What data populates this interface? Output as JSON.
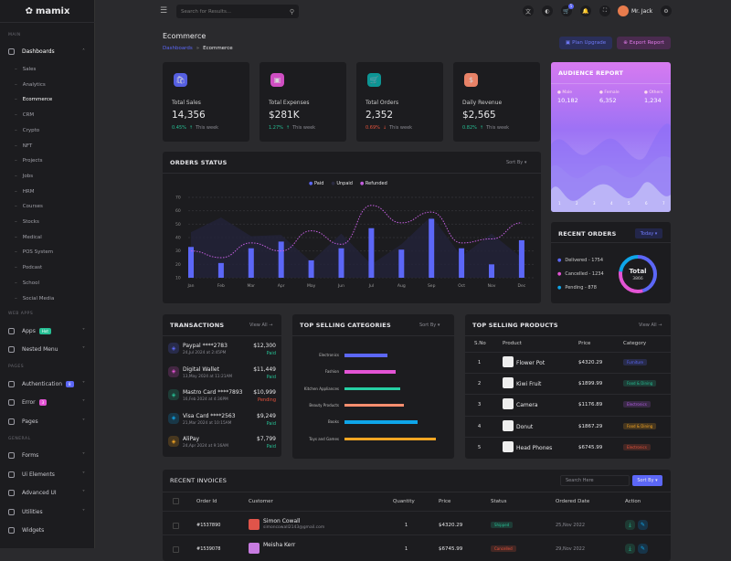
{
  "brand": "mamix",
  "sidebar": {
    "sections": [
      "MAIN",
      "WEB APPS",
      "PAGES",
      "GENERAL"
    ],
    "dashboards": "Dashboards",
    "sub_items": [
      "Sales",
      "Analytics",
      "Ecommerce",
      "CRM",
      "Crypto",
      "NFT",
      "Projects",
      "Jobs",
      "HRM",
      "Courses",
      "Stocks",
      "Medical",
      "POS System",
      "Podcast",
      "School",
      "Social Media"
    ],
    "apps": {
      "label": "Apps",
      "badge": "Hot"
    },
    "nested": "Nested Menu",
    "auth": {
      "label": "Authentication",
      "badge": "8"
    },
    "error": {
      "label": "Error",
      "badge": "3"
    },
    "pages": "Pages",
    "forms": "Forms",
    "ui": "Ui Elements",
    "advanced": "Advanced UI",
    "utilities": "Utilities",
    "widgets": "Widgets"
  },
  "topbar": {
    "search_placeholder": "Search for Results...",
    "cart_count": "5",
    "user": "Mr. Jack"
  },
  "page": {
    "title": "Ecommerce",
    "breadcrumb": [
      "Dashboards",
      "Ecommerce"
    ],
    "plan_upgrade": "Plan Upgrade",
    "export_report": "Export Report"
  },
  "stats": [
    {
      "label": "Total Sales",
      "value": "14,356",
      "change": "0.45%",
      "dir": "up",
      "period": "This week",
      "color": "#5c67f7"
    },
    {
      "label": "Total Expenses",
      "value": "$281K",
      "change": "1.27%",
      "dir": "up",
      "period": "This week",
      "color": "#e354d4"
    },
    {
      "label": "Total Orders",
      "value": "2,352",
      "change": "0.69%",
      "dir": "down",
      "period": "This week",
      "color": "#0ca3a1"
    },
    {
      "label": "Daily Revenue",
      "value": "$2,565",
      "change": "0.82%",
      "dir": "up",
      "period": "This week",
      "color": "#ff8e6f"
    }
  ],
  "audience": {
    "title": "AUDIENCE REPORT",
    "items": [
      {
        "label": "Male",
        "value": "10,182"
      },
      {
        "label": "Female",
        "value": "6,352"
      },
      {
        "label": "Others",
        "value": "1,234"
      }
    ],
    "x": [
      "1",
      "2",
      "3",
      "4",
      "5",
      "6",
      "7"
    ]
  },
  "orders_status": {
    "title": "ORDERS STATUS",
    "sort": "Sort By"
  },
  "chart_data": {
    "type": "bar",
    "categories": [
      "Jan",
      "Feb",
      "Mar",
      "Apr",
      "May",
      "Jun",
      "Jul",
      "Aug",
      "Sep",
      "Oct",
      "Nov",
      "Dec"
    ],
    "ylim": [
      10,
      70
    ],
    "yticks": [
      10,
      20,
      30,
      40,
      50,
      60,
      70
    ],
    "grid": true,
    "legend": "top",
    "series": [
      {
        "name": "Paid",
        "type": "bar",
        "color": "#5c67f7",
        "values": [
          33,
          21,
          32,
          37,
          23,
          32,
          47,
          31,
          54,
          32,
          20,
          38
        ]
      },
      {
        "name": "Unpaid",
        "type": "area",
        "color": "#23233a",
        "values": [
          44,
          55,
          41,
          42,
          22,
          43,
          20,
          35,
          56,
          26,
          43,
          25
        ]
      },
      {
        "name": "Refunded",
        "type": "line",
        "color": "#c45ee0",
        "values": [
          30,
          25,
          36,
          30,
          45,
          35,
          64,
          51,
          59,
          36,
          39,
          51
        ]
      }
    ]
  },
  "recent_orders": {
    "title": "RECENT ORDERS",
    "filter": "Today",
    "items": [
      {
        "label": "Delivered - 1754",
        "color": "#5c67f7",
        "value": 1754
      },
      {
        "label": "Cancelled - 1234",
        "color": "#e354d4",
        "value": 1234
      },
      {
        "label": "Pending - 878",
        "color": "#0ea5e9",
        "value": 878
      }
    ],
    "total_label": "Total",
    "total": "3866"
  },
  "transactions": {
    "title": "TRANSACTIONS",
    "view_all": "View All",
    "items": [
      {
        "name": "Paypal ****2783",
        "date": "24,Jul 2024 at 2:45PM",
        "amount": "$12,300",
        "status": "Paid",
        "color": "#5c67f7"
      },
      {
        "name": "Digital Wallet",
        "date": "13,May 2024 at 11:21AM",
        "amount": "$11,449",
        "status": "Paid",
        "color": "#e354d4"
      },
      {
        "name": "Mastro Card ****7893",
        "date": "16,Feb 2024 at 4:36PM",
        "amount": "$10,999",
        "status": "Pending",
        "color": "#26bf94"
      },
      {
        "name": "Visa Card ****2563",
        "date": "21,Mar 2024 at 10:15AM",
        "amount": "$9,249",
        "status": "Paid",
        "color": "#0ea5e9"
      },
      {
        "name": "AliPay",
        "date": "24,Apr 2024 at 9:16AM",
        "amount": "$7,799",
        "status": "Paid",
        "color": "#f5a623"
      }
    ]
  },
  "categories": {
    "title": "TOP SELLING CATEGORIES",
    "sort": "Sort By",
    "items": [
      {
        "label": "Electronics",
        "value": 47,
        "color": "#5c67f7"
      },
      {
        "label": "Fashion",
        "value": 56,
        "color": "#e354d4"
      },
      {
        "label": "Kitchen Appliances",
        "value": 61,
        "color": "#26d0a4"
      },
      {
        "label": "Beauty Products",
        "value": 65,
        "color": "#ff8e6f"
      },
      {
        "label": "Books",
        "value": 80,
        "color": "#0ea5e9"
      },
      {
        "label": "Toys and Games",
        "value": 100,
        "color": "#f5a623"
      }
    ]
  },
  "products": {
    "title": "TOP SELLING PRODUCTS",
    "view_all": "View All",
    "headers": [
      "S.No",
      "Product",
      "Price",
      "Category"
    ],
    "rows": [
      {
        "no": "1",
        "name": "Flower Pot",
        "price": "$4320.29",
        "category": "Furniture",
        "color": "#5c67f7"
      },
      {
        "no": "2",
        "name": "Kiwi Fruit",
        "price": "$1899.99",
        "category": "Food & Dining",
        "color": "#26bf94"
      },
      {
        "no": "3",
        "name": "Camera",
        "price": "$1176.89",
        "category": "Electronics",
        "color": "#b05ee0"
      },
      {
        "no": "4",
        "name": "Donut",
        "price": "$1867.29",
        "category": "Food & Dining",
        "color": "#f5a623"
      },
      {
        "no": "5",
        "name": "Head Phones",
        "price": "$6745.99",
        "category": "Electronics",
        "color": "#e6533c"
      }
    ]
  },
  "invoices": {
    "title": "RECENT INVOICES",
    "search_placeholder": "Search Here",
    "sort": "Sort By",
    "headers": [
      "Order Id",
      "Customer",
      "Quantity",
      "Price",
      "Status",
      "Ordered Date",
      "Action"
    ],
    "rows": [
      {
        "id": "#1537890",
        "name": "Simon Cowall",
        "email": "simoncowall2143@gmail.com",
        "qty": "1",
        "price": "$4320.29",
        "status": "Shipped",
        "date": "25,Nov 2022",
        "color": "#26bf94"
      },
      {
        "id": "#1539078",
        "name": "Meisha Kerr",
        "email": "",
        "qty": "1",
        "price": "$6745.99",
        "status": "Cancelled",
        "date": "29,Nov 2022",
        "color": "#e6533c"
      }
    ]
  }
}
